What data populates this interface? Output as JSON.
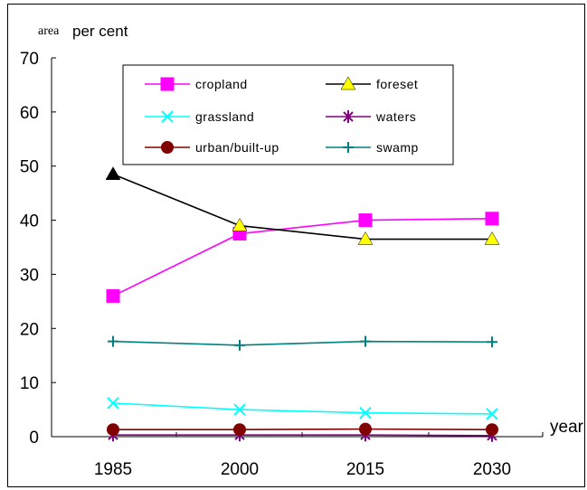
{
  "chart_data": {
    "type": "line",
    "title": "",
    "ylabel_prefix": "area",
    "ylabel": "per cent",
    "xlabel": "year",
    "categories": [
      "1985",
      "2000",
      "2015",
      "2030"
    ],
    "ylim": [
      0,
      70
    ],
    "yticks": [
      0,
      10,
      20,
      30,
      40,
      50,
      60,
      70
    ],
    "grid": false,
    "legend_position": "top-center",
    "series": [
      {
        "name": "cropland",
        "values": [
          26.0,
          37.5,
          40.0,
          40.3
        ],
        "color": "#ff00ff",
        "marker": "square"
      },
      {
        "name": "foreset",
        "values": [
          48.5,
          39.0,
          36.5,
          36.5
        ],
        "color": "#000000",
        "marker": "triangle"
      },
      {
        "name": "grassland",
        "values": [
          6.2,
          5.0,
          4.4,
          4.2
        ],
        "color": "#00ffff",
        "marker": "x"
      },
      {
        "name": "waters",
        "values": [
          0.3,
          0.3,
          0.3,
          0.2
        ],
        "color": "#800080",
        "marker": "star"
      },
      {
        "name": "urban/built-up",
        "values": [
          1.3,
          1.3,
          1.4,
          1.3
        ],
        "color": "#800000",
        "marker": "circle"
      },
      {
        "name": "swamp",
        "values": [
          17.6,
          16.9,
          17.6,
          17.5
        ],
        "color": "#008080",
        "marker": "plus"
      }
    ]
  }
}
